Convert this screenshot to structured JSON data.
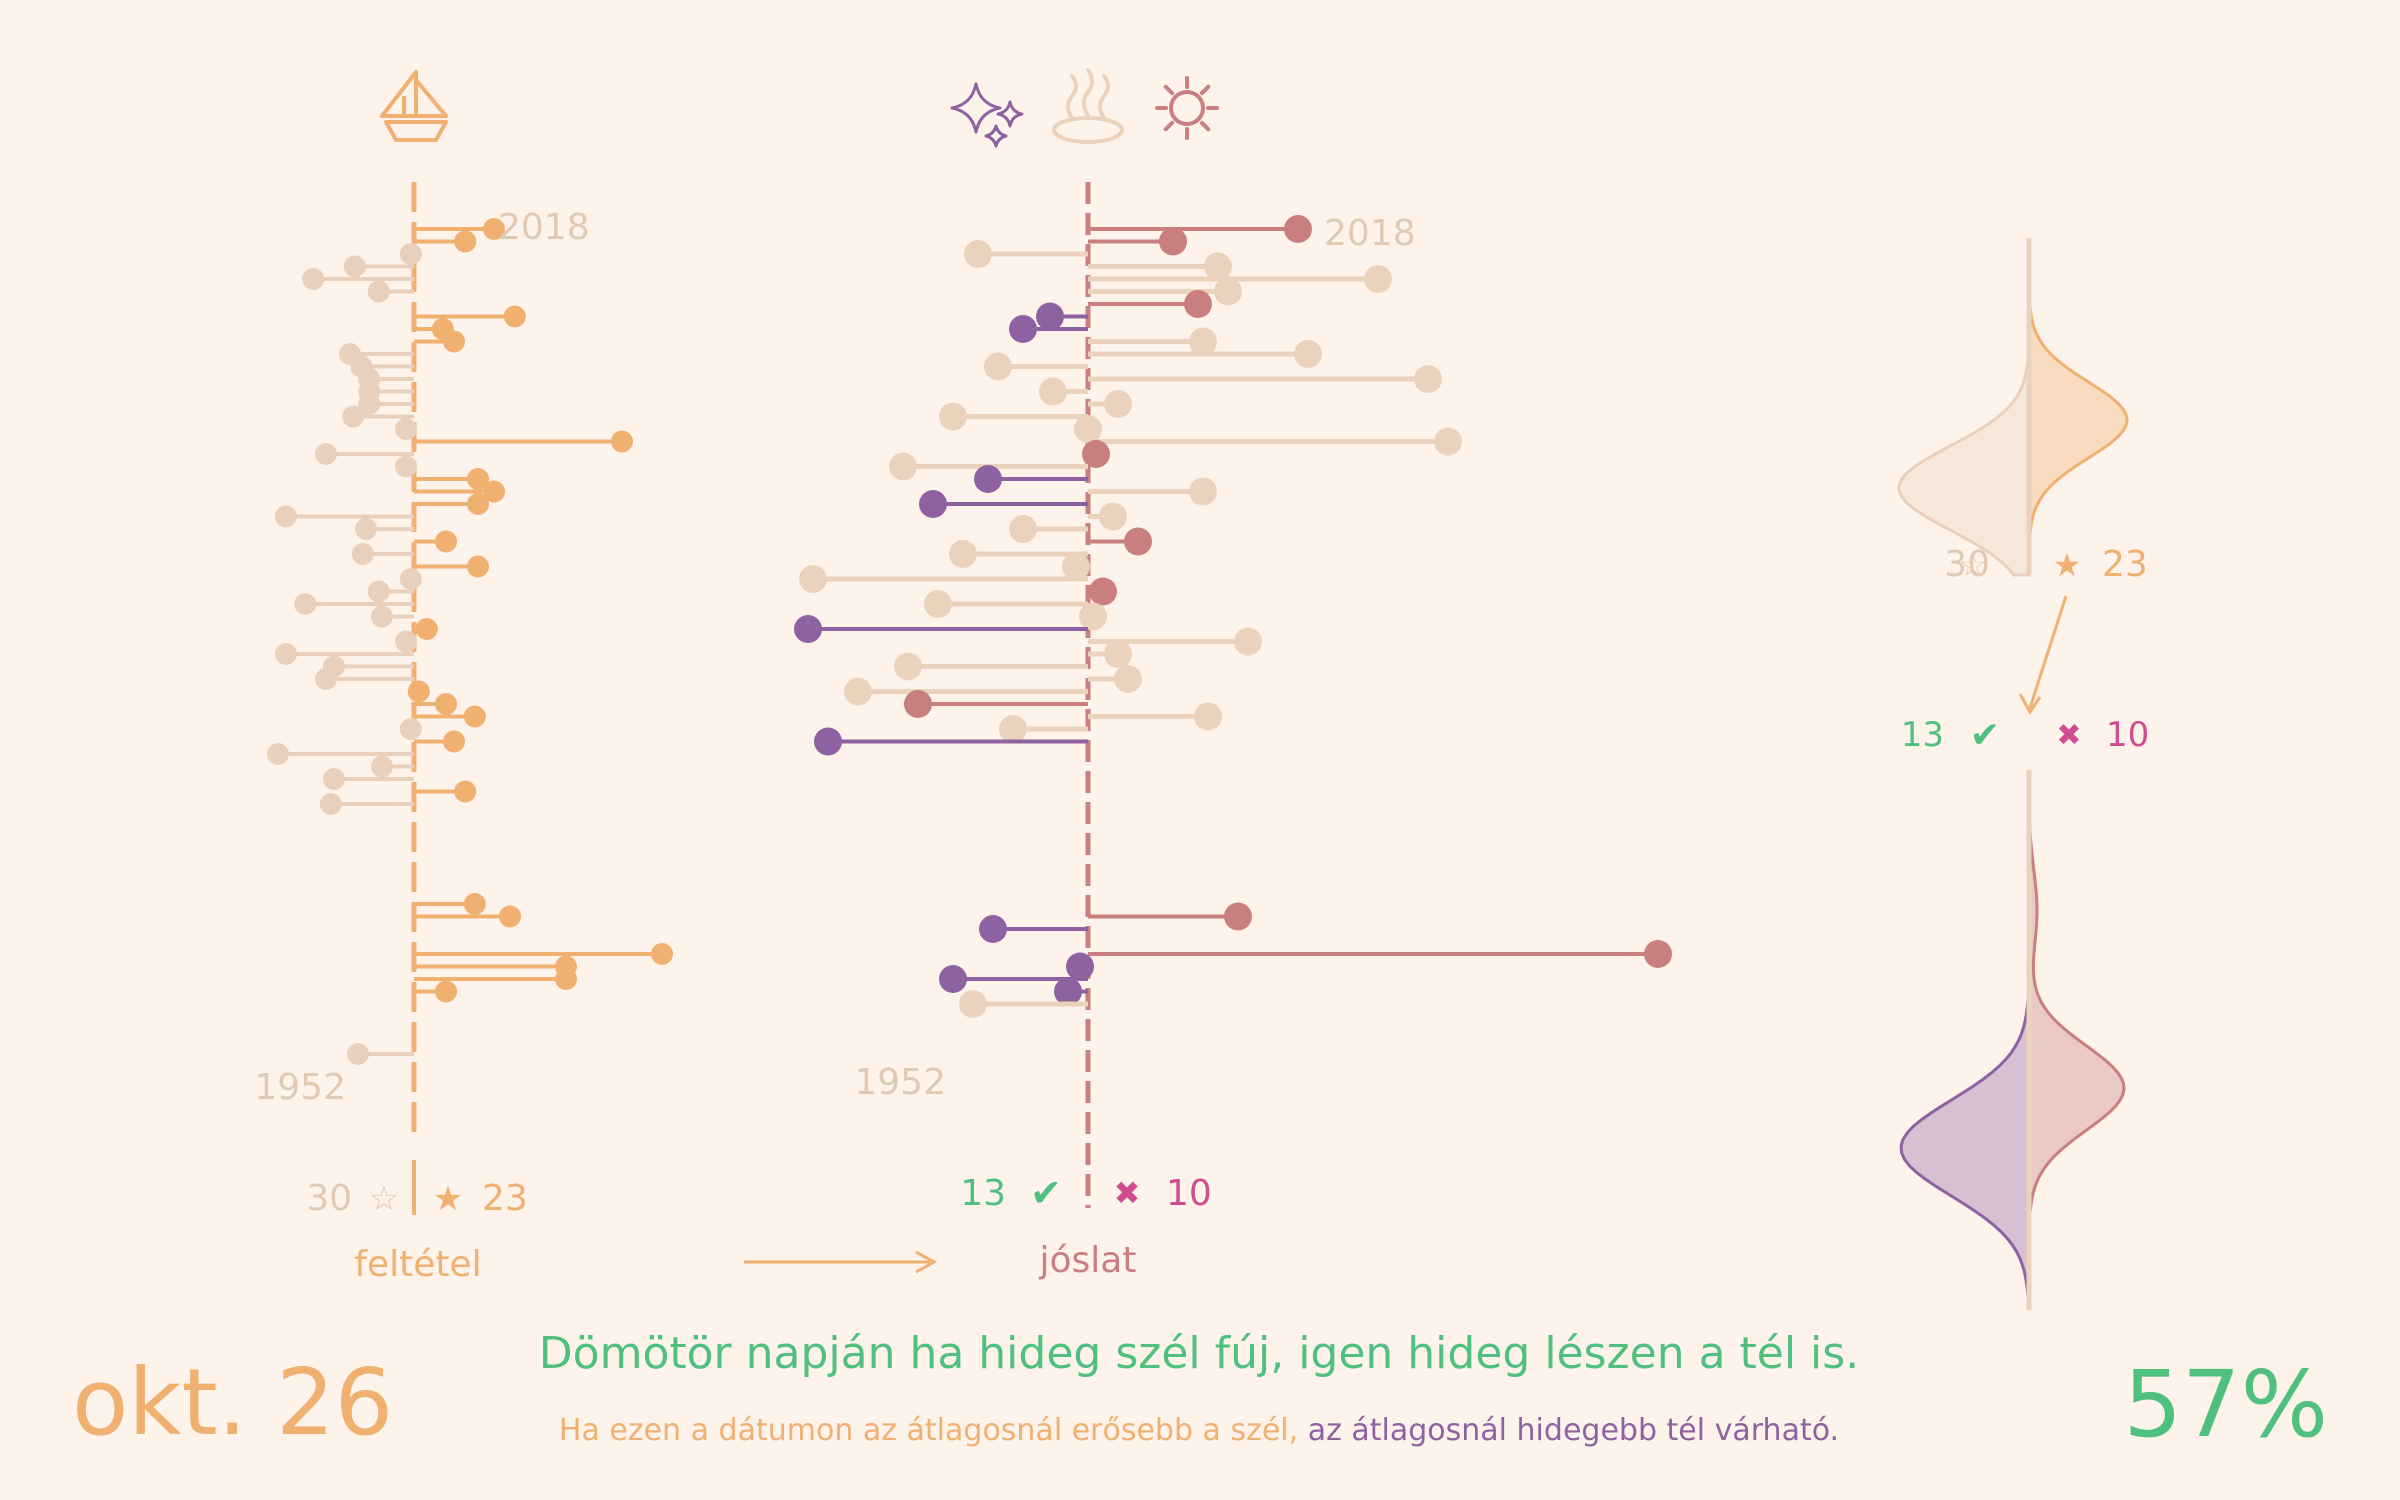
{
  "colors": {
    "background": "#fdf3eb",
    "condition": "#f0b070",
    "condition_faint": "#e8d0bc",
    "warm": "#c97f7f",
    "cold": "#8e62a0",
    "faint": "#ebd2bd",
    "correct": "#4fc07f",
    "wrong": "#cf4d8f",
    "label": "#e0c9b5"
  },
  "icons": {
    "condition": "sailboat-icon",
    "prediction": [
      "sparkles-icon",
      "hot-spring-icon",
      "sun-icon"
    ],
    "arrow": "arrow-right-icon",
    "check": "checkmark-icon",
    "cross": "cross-icon"
  },
  "labels": {
    "year_top": "2018",
    "year_bottom": "1952",
    "condition_axis": "feltétel",
    "prediction_axis": "jóslat",
    "count_not_met": "30",
    "count_met": "23",
    "star_empty": "☆",
    "star_full": "★",
    "count_correct": "13",
    "count_wrong": "10",
    "check": "✔",
    "cross": "✖"
  },
  "footer": {
    "date": "okt. 26",
    "proverb": "Dömötör napján ha hideg szél fúj, igen hideg lészen a tél is.",
    "explanation_condition": "Ha ezen a dátumon az átlagosnál erősebb a szél,",
    "explanation_prediction": "az átlagosnál hidegebb tél várható.",
    "accuracy": "57%"
  },
  "chart_data": [
    {
      "type": "lollipop",
      "name": "condition",
      "years": [
        2018,
        2017,
        2016,
        2015,
        2014,
        2013,
        2012,
        2011,
        2010,
        2009,
        2008,
        2007,
        2006,
        2005,
        2004,
        2003,
        2002,
        2001,
        2000,
        1999,
        1998,
        1997,
        1996,
        1995,
        1994,
        1993,
        1992,
        1991,
        1990,
        1989,
        1988,
        1987,
        1986,
        1985,
        1984,
        1983,
        1982,
        1981,
        1980,
        1979,
        1978,
        1977,
        1976,
        1975,
        1974,
        1973,
        1972,
        1971,
        1970,
        1969,
        1968,
        1967,
        1966,
        1965,
        1964,
        1963,
        1962,
        1961,
        1960,
        1959,
        1958,
        1957,
        1956,
        1955,
        1954,
        1953,
        1952
      ],
      "values": [
        0.5,
        0.32,
        -0.02,
        -0.37,
        -0.63,
        -0.22,
        null,
        0.63,
        0.18,
        0.25,
        -0.4,
        -0.33,
        -0.28,
        -0.28,
        -0.28,
        -0.38,
        -0.05,
        1.3,
        -0.55,
        -0.05,
        0.4,
        0.5,
        0.4,
        -0.8,
        -0.3,
        0.2,
        -0.32,
        0.4,
        -0.02,
        -0.22,
        -0.68,
        -0.2,
        0.08,
        -0.05,
        -0.8,
        -0.5,
        -0.55,
        0.03,
        0.2,
        0.38,
        -0.02,
        0.25,
        -0.85,
        -0.2,
        -0.5,
        0.32,
        -0.52,
        null,
        null,
        null,
        null,
        null,
        null,
        null,
        0.38,
        0.6,
        null,
        null,
        1.55,
        0.95,
        0.95,
        0.2,
        null,
        null,
        null,
        null,
        -0.35
      ],
      "met": [
        true,
        true,
        false,
        false,
        false,
        false,
        null,
        true,
        true,
        true,
        false,
        false,
        false,
        false,
        false,
        false,
        false,
        true,
        false,
        false,
        true,
        true,
        true,
        false,
        false,
        true,
        false,
        true,
        false,
        false,
        false,
        false,
        true,
        false,
        false,
        false,
        false,
        true,
        true,
        true,
        false,
        true,
        false,
        false,
        false,
        true,
        false,
        null,
        null,
        null,
        null,
        null,
        null,
        null,
        true,
        true,
        null,
        null,
        true,
        true,
        true,
        true,
        null,
        null,
        null,
        null,
        false
      ]
    },
    {
      "type": "lollipop",
      "name": "prediction",
      "years": [
        2018,
        2017,
        2016,
        2015,
        2014,
        2013,
        2012,
        2011,
        2010,
        2009,
        2008,
        2007,
        2006,
        2005,
        2004,
        2003,
        2002,
        2001,
        2000,
        1999,
        1998,
        1997,
        1996,
        1995,
        1994,
        1993,
        1992,
        1991,
        1990,
        1989,
        1988,
        1987,
        1986,
        1985,
        1984,
        1983,
        1982,
        1981,
        1980,
        1979,
        1978,
        1977,
        1976,
        1975,
        1974,
        1973,
        1972,
        1971,
        1970,
        1969,
        1968,
        1967,
        1966,
        1965,
        1964,
        1963,
        1962,
        1961,
        1960,
        1959,
        1958,
        1957,
        1956,
        1955,
        1954,
        1953,
        1952
      ],
      "values": [
        2.1,
        0.85,
        -1.1,
        1.3,
        2.9,
        1.4,
        1.1,
        -0.38,
        -0.65,
        1.15,
        2.2,
        -0.9,
        3.4,
        -0.35,
        0.3,
        -1.35,
        0.0,
        3.6,
        0.08,
        -1.85,
        -1.0,
        1.15,
        -1.55,
        0.25,
        -0.65,
        0.5,
        -1.25,
        -0.12,
        -2.75,
        0.15,
        -1.5,
        0.05,
        -2.8,
        1.6,
        0.3,
        -1.8,
        0.4,
        -2.3,
        -1.7,
        1.2,
        -0.75,
        -2.6,
        null,
        null,
        null,
        null,
        null,
        null,
        null,
        null,
        null,
        null,
        null,
        null,
        null,
        1.5,
        -0.95,
        null,
        5.7,
        -0.08,
        -1.35,
        -0.2,
        -1.15,
        null,
        null,
        null,
        null
      ],
      "status": [
        "warm",
        "warm",
        "faint",
        "faint",
        "faint",
        "faint",
        "warm",
        "cold",
        "cold",
        "faint",
        "faint",
        "faint",
        "faint",
        "faint",
        "faint",
        "faint",
        "faint",
        "faint",
        "warm",
        "faint",
        "cold",
        "faint",
        "cold",
        "faint",
        "faint",
        "warm",
        "faint",
        "faint",
        "faint",
        "warm",
        "faint",
        "faint",
        "cold",
        "faint",
        "faint",
        "faint",
        "faint",
        "faint",
        "warm",
        "faint",
        "faint",
        "cold",
        null,
        null,
        null,
        null,
        null,
        null,
        null,
        null,
        null,
        null,
        null,
        null,
        null,
        "warm",
        "cold",
        null,
        "warm",
        "cold",
        "cold",
        "cold",
        "faint",
        null,
        null,
        null,
        null
      ]
    }
  ]
}
